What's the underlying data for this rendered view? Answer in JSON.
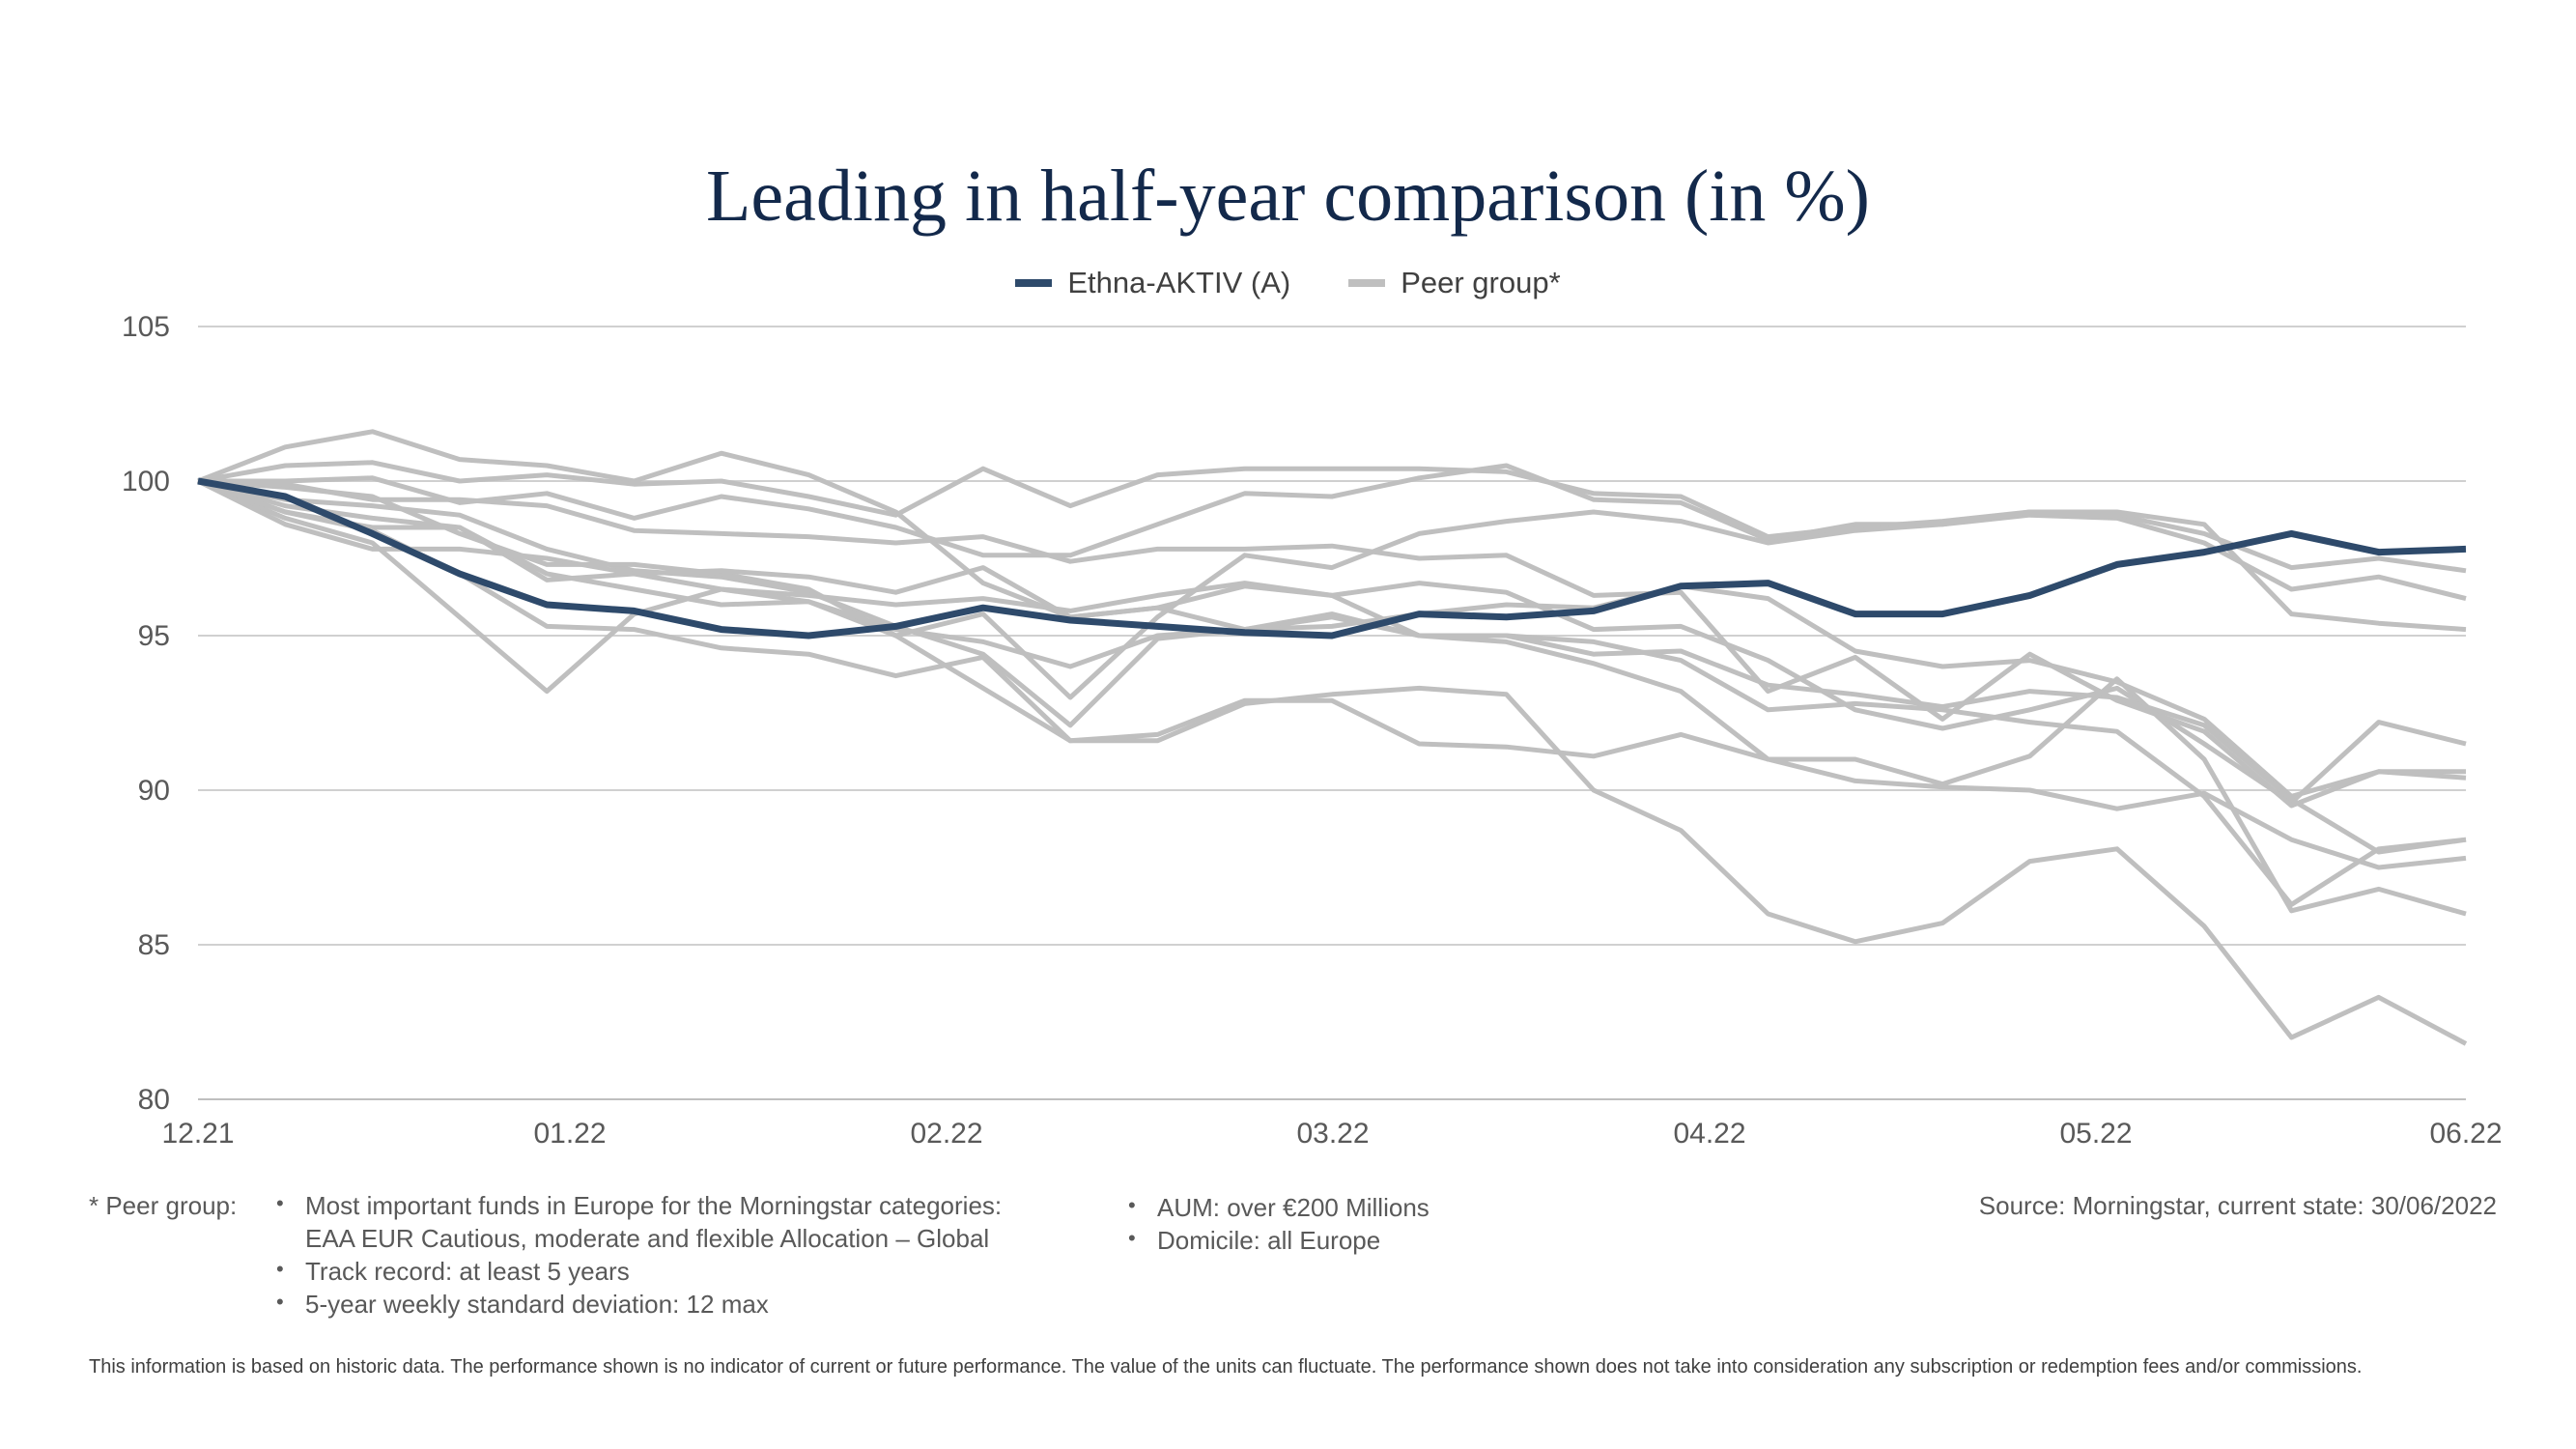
{
  "chart_data": {
    "type": "line",
    "title": "Leading in half-year comparison (in %)",
    "xlabel": "",
    "ylabel": "",
    "ylim": [
      80,
      105
    ],
    "yticks": [
      "105",
      "100",
      "95",
      "90",
      "85",
      "80"
    ],
    "xticks": [
      "12.21",
      "01.22",
      "02.22",
      "03.22",
      "04.22",
      "05.22",
      "06.22"
    ],
    "grid": true,
    "legend": "top-center",
    "highlight": {
      "name": "Ethna-AKTIV (A)",
      "color": "#2e4a6b",
      "values": [
        100,
        99.5,
        98.3,
        97.0,
        96.0,
        95.8,
        95.2,
        95.0,
        95.3,
        95.9,
        95.5,
        95.3,
        95.1,
        95.0,
        95.7,
        95.6,
        95.8,
        96.6,
        96.7,
        95.7,
        95.7,
        96.3,
        97.3,
        97.7,
        98.3,
        97.7,
        97.8
      ]
    },
    "peer_series_label": "Peer group*",
    "peer_color": "#bfbfbf",
    "peers": [
      [
        100,
        101.1,
        101.6,
        100.7,
        100.5,
        100.0,
        100.9,
        100.2,
        99.0,
        96.7,
        95.6,
        95.9,
        95.2,
        95.3,
        95.7,
        96.0,
        95.9,
        96.6,
        96.2,
        94.5,
        94.0,
        94.2,
        93.5,
        92.3,
        89.8,
        90.6,
        90.4
      ],
      [
        100,
        100.5,
        100.6,
        100.0,
        100.2,
        99.9,
        100.0,
        99.5,
        98.9,
        100.4,
        99.2,
        100.2,
        100.4,
        100.4,
        100.4,
        100.3,
        99.6,
        99.5,
        98.2,
        98.5,
        98.7,
        99.0,
        98.9,
        98.3,
        97.2,
        97.5,
        97.1
      ],
      [
        100,
        100.0,
        100.1,
        99.3,
        99.6,
        98.8,
        99.5,
        99.1,
        98.5,
        97.6,
        97.6,
        98.6,
        99.6,
        99.5,
        100.1,
        100.5,
        99.4,
        99.3,
        98.1,
        98.6,
        98.6,
        98.9,
        98.8,
        98.0,
        96.5,
        96.9,
        96.2
      ],
      [
        100,
        99.2,
        98.8,
        98.5,
        96.8,
        97.0,
        96.5,
        96.3,
        96.0,
        96.2,
        95.8,
        96.3,
        96.7,
        96.3,
        96.7,
        96.4,
        95.2,
        95.3,
        94.2,
        92.6,
        92.0,
        92.6,
        93.3,
        91.5,
        89.6,
        92.2,
        91.5
      ],
      [
        100,
        98.8,
        98.0,
        95.6,
        93.2,
        95.7,
        96.5,
        96.1,
        95.0,
        95.7,
        93.0,
        95.6,
        97.6,
        97.2,
        98.3,
        98.7,
        99.0,
        98.7,
        98.0,
        98.4,
        98.6,
        99.0,
        99.0,
        98.6,
        95.7,
        95.4,
        95.2
      ],
      [
        100,
        99.4,
        99.2,
        98.9,
        97.8,
        97.1,
        96.9,
        96.4,
        95.3,
        94.4,
        92.1,
        94.9,
        95.2,
        95.6,
        95.0,
        94.8,
        94.1,
        93.2,
        91.0,
        90.3,
        90.1,
        90.0,
        89.4,
        89.9,
        88.4,
        87.5,
        87.8
      ],
      [
        100,
        99.8,
        99.5,
        98.3,
        97.3,
        97.3,
        97.0,
        96.5,
        95.0,
        93.3,
        91.6,
        91.6,
        92.8,
        93.1,
        93.3,
        93.1,
        90.0,
        88.7,
        86.0,
        85.1,
        85.7,
        87.7,
        88.1,
        85.6,
        82.0,
        83.3,
        81.8
      ],
      [
        100,
        99.9,
        99.4,
        99.4,
        99.2,
        98.4,
        98.3,
        98.2,
        98.0,
        98.2,
        97.4,
        97.8,
        97.8,
        97.9,
        97.5,
        97.6,
        96.3,
        96.4,
        93.2,
        94.3,
        92.3,
        94.4,
        92.9,
        91.9,
        89.5,
        90.6,
        90.6
      ],
      [
        100,
        98.6,
        97.8,
        97.8,
        97.5,
        97.0,
        97.1,
        96.9,
        96.4,
        97.2,
        95.6,
        95.9,
        96.6,
        96.3,
        95.0,
        95.0,
        94.4,
        94.5,
        93.4,
        93.1,
        92.7,
        93.2,
        93.0,
        92.1,
        89.7,
        88.0,
        88.4
      ],
      [
        100,
        99.0,
        98.5,
        98.5,
        97.0,
        96.5,
        96.0,
        96.1,
        95.2,
        94.8,
        94.0,
        95.0,
        95.2,
        95.7,
        95.0,
        95.0,
        94.8,
        94.2,
        92.6,
        92.8,
        92.6,
        92.2,
        91.9,
        89.8,
        86.3,
        88.1,
        88.4
      ],
      [
        100,
        99.0,
        98.4,
        97.0,
        95.3,
        95.2,
        94.6,
        94.4,
        93.7,
        94.3,
        91.6,
        91.8,
        92.9,
        92.9,
        91.5,
        91.4,
        91.1,
        91.8,
        91.0,
        91.0,
        90.2,
        91.1,
        93.6,
        91.0,
        86.1,
        86.8,
        86.0
      ]
    ]
  },
  "footnotes": {
    "label": "* Peer group:",
    "bullet_char": "•",
    "col1": [
      "Most important funds in Europe for the Morningstar categories:",
      "EAA EUR Cautious, moderate and flexible Allocation – Global",
      "Track record: at least 5 years",
      "5-year weekly standard deviation: 12 max"
    ],
    "col2": [
      "AUM: over €200 Millions",
      "Domicile: all Europe"
    ],
    "source": "Source: Morningstar, current state: 30/06/2022",
    "disclaimer": "This information is based on historic data. The performance shown is no indicator of current or future performance. The value of the units can fluctuate. The performance shown does not take into consideration any subscription or redemption fees and/or commissions."
  }
}
